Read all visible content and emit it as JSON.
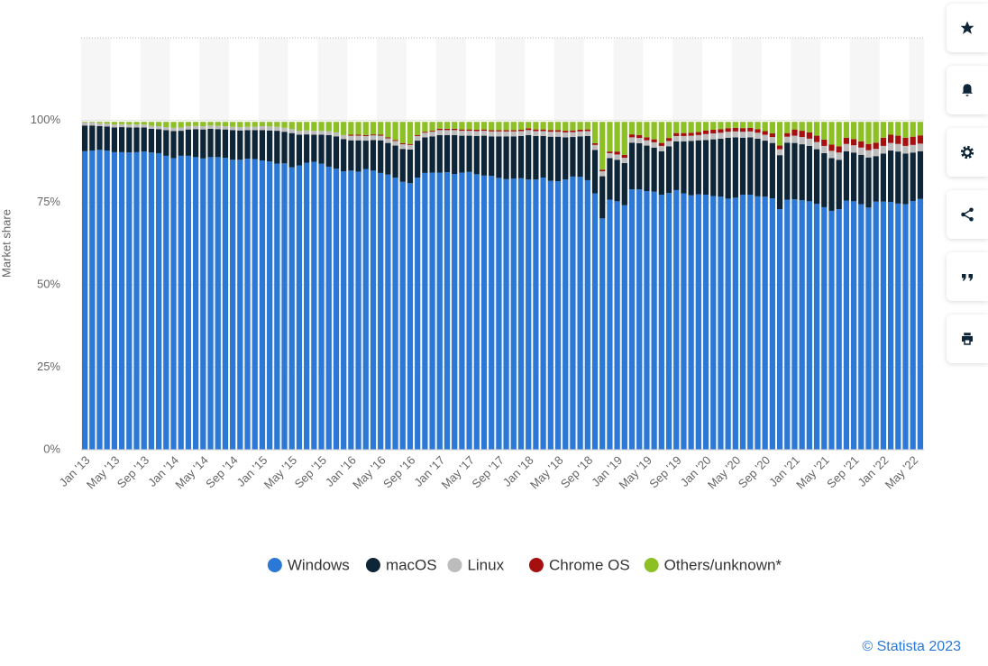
{
  "chart_data": {
    "type": "bar",
    "stacked": true,
    "y_label": "Market share",
    "credit": "© Statista 2023",
    "categories": [
      "Jan '13",
      null,
      null,
      null,
      "May '13",
      null,
      null,
      null,
      "Sep '13",
      null,
      null,
      null,
      "Jan '14",
      null,
      null,
      null,
      "May '14",
      null,
      null,
      null,
      "Sep '14",
      null,
      null,
      null,
      "Jan '15",
      null,
      null,
      null,
      "May '15",
      null,
      null,
      null,
      "Sep '15",
      null,
      null,
      null,
      "Jan '16",
      null,
      null,
      null,
      "May '16",
      null,
      null,
      null,
      "Sep '16",
      null,
      null,
      null,
      "Jan '17",
      null,
      null,
      null,
      "May '17",
      null,
      null,
      null,
      "Sep '17",
      null,
      null,
      null,
      "Jan '18",
      null,
      null,
      null,
      "May '18",
      null,
      null,
      null,
      "Sep '18",
      null,
      null,
      null,
      "Jan '19",
      null,
      null,
      null,
      "May '19",
      null,
      null,
      null,
      "Sep '19",
      null,
      null,
      null,
      "Jan '20",
      null,
      null,
      null,
      "May '20",
      null,
      null,
      null,
      "Sep '20",
      null,
      null,
      null,
      "Jan '21",
      null,
      null,
      null,
      "May '21",
      null,
      null,
      null,
      "Sep '21",
      null,
      null,
      null,
      "Jan '22",
      null,
      null,
      null,
      "May '22",
      null
    ],
    "series": [
      {
        "name": "Windows",
        "color": "#2b78d6",
        "values": [
          90.6,
          90.8,
          91,
          90.8,
          90.3,
          90.3,
          90.2,
          90.3,
          90.5,
          90.2,
          90,
          89.2,
          88.5,
          89.2,
          89.2,
          88.8,
          88.4,
          88.8,
          88.8,
          88.6,
          88,
          88,
          88.3,
          88.2,
          87.8,
          87.5,
          86.8,
          86.9,
          85.7,
          86.3,
          87.1,
          87.4,
          86.8,
          85.9,
          85.3,
          84.5,
          84.7,
          84.4,
          85.2,
          84.7,
          84,
          83.5,
          82.6,
          81.3,
          80.9,
          82.6,
          84,
          84.1,
          84.1,
          84.2,
          83.7,
          84.1,
          84.3,
          83.6,
          83.2,
          83.1,
          82.5,
          82.1,
          82.3,
          82.4,
          82,
          82,
          82.6,
          81.6,
          81.5,
          82,
          82.9,
          82.8,
          81.8,
          77.8,
          70.2,
          75.9,
          75.4,
          74.2,
          79,
          79,
          78.5,
          78.3,
          77.4,
          77.9,
          78.8,
          77.8,
          77.2,
          77.5,
          77.4,
          77,
          76.8,
          76.2,
          76.5,
          77.4,
          77.4,
          76.9,
          76.8,
          76.3,
          73,
          75.9,
          76,
          75.7,
          75.4,
          74.6,
          73.6,
          72.5,
          73,
          75.6,
          75.4,
          74.5,
          73.5,
          75.3,
          75.3,
          75.2,
          74.7,
          74.5,
          75.5,
          76.1
        ]
      },
      {
        "name": "macOS",
        "color": "#0e2538",
        "values": [
          7.8,
          7.6,
          7.2,
          7.3,
          7.5,
          7.6,
          7.6,
          7.5,
          7.3,
          7.2,
          7.3,
          7.8,
          8.2,
          7.6,
          8.0,
          8.5,
          8.8,
          8.6,
          8.5,
          8.6,
          9.0,
          8.9,
          8.7,
          8.8,
          9.2,
          9.4,
          10.0,
          9.6,
          10.4,
          9.3,
          8.6,
          8.2,
          8.8,
          9.6,
          9.8,
          9.8,
          9.2,
          9.5,
          8.6,
          9.3,
          9.9,
          9.6,
          9.7,
          10.0,
          10.2,
          11.2,
          10.8,
          11.0,
          11.4,
          11.3,
          11.8,
          11.2,
          11.0,
          11.6,
          12.1,
          12.0,
          12.6,
          13.0,
          12.8,
          12.8,
          13.5,
          13.2,
          12.6,
          13.4,
          13.5,
          12.8,
          12.0,
          12.3,
          13.4,
          13.2,
          12.8,
          12.6,
          12.6,
          12.8,
          14.2,
          14.0,
          13.8,
          13.4,
          13.2,
          14.2,
          14.8,
          15.8,
          16.5,
          16.4,
          16.6,
          17.2,
          17.6,
          18.5,
          18.3,
          17.3,
          17.4,
          17.5,
          17.0,
          16.8,
          16.4,
          17.3,
          17.1,
          17.0,
          16.8,
          16.6,
          16.4,
          16.0,
          15.0,
          15.0,
          14.8,
          15.0,
          15.2,
          13.8,
          14.6,
          15.6,
          15.8,
          15.4,
          14.7,
          14.5
        ]
      },
      {
        "name": "Linux",
        "color": "#bcbcbc",
        "values": [
          0.9,
          0.9,
          0.9,
          0.9,
          0.9,
          0.9,
          0.9,
          0.9,
          0.9,
          0.9,
          0.9,
          0.9,
          1.0,
          1.0,
          1.0,
          1.0,
          1.0,
          1.0,
          1.0,
          1.0,
          1.0,
          1.0,
          1.0,
          1.0,
          1.2,
          1.2,
          1.2,
          1.2,
          1.2,
          1.2,
          1.2,
          1.2,
          1.2,
          1.2,
          1.2,
          1.2,
          1.4,
          1.4,
          1.4,
          1.4,
          1.4,
          1.4,
          1.4,
          1.4,
          1.4,
          1.4,
          1.4,
          1.4,
          1.5,
          1.5,
          1.5,
          1.5,
          1.5,
          1.5,
          1.5,
          1.5,
          1.5,
          1.5,
          1.5,
          1.5,
          1.5,
          1.5,
          1.5,
          1.5,
          1.5,
          1.5,
          1.5,
          1.5,
          1.5,
          1.5,
          1.5,
          1.5,
          1.6,
          1.6,
          1.6,
          1.6,
          1.6,
          1.6,
          1.6,
          1.6,
          1.6,
          1.6,
          1.6,
          1.6,
          1.8,
          1.8,
          1.8,
          1.8,
          1.8,
          1.8,
          1.8,
          1.8,
          1.8,
          1.8,
          1.8,
          1.8,
          2.2,
          2.2,
          2.2,
          2.2,
          2.2,
          2.2,
          2.2,
          2.2,
          2.2,
          2.2,
          2.2,
          2.2,
          2.3,
          2.3,
          2.3,
          2.3,
          2.3,
          2.3
        ]
      },
      {
        "name": "Chrome OS",
        "color": "#a60f0f",
        "values": [
          0,
          0,
          0,
          0,
          0,
          0,
          0,
          0,
          0,
          0,
          0,
          0,
          0,
          0,
          0,
          0,
          0,
          0,
          0,
          0,
          0,
          0,
          0,
          0,
          0,
          0,
          0,
          0,
          0,
          0,
          0,
          0,
          0,
          0,
          0,
          0,
          0.3,
          0.3,
          0.3,
          0.3,
          0.3,
          0.3,
          0.3,
          0.3,
          0.3,
          0.3,
          0.3,
          0.3,
          0.4,
          0.4,
          0.4,
          0.4,
          0.4,
          0.4,
          0.4,
          0.4,
          0.4,
          0.4,
          0.4,
          0.4,
          0.5,
          0.5,
          0.5,
          0.5,
          0.5,
          0.5,
          0.5,
          0.5,
          0.5,
          0.5,
          0.5,
          0.5,
          0.9,
          0.9,
          0.9,
          0.9,
          0.9,
          0.9,
          0.9,
          0.9,
          0.9,
          0.9,
          0.9,
          0.9,
          1.1,
          1.1,
          1.1,
          1.1,
          1.1,
          1.1,
          1.1,
          1.1,
          1.1,
          1.1,
          1.1,
          1.1,
          1.9,
          1.9,
          1.9,
          1.9,
          1.9,
          1.9,
          1.9,
          1.9,
          1.9,
          1.9,
          1.9,
          1.9,
          2.5,
          2.5,
          2.5,
          2.5,
          2.5,
          2.5
        ]
      },
      {
        "name": "Others/unknown*",
        "color": "#8cc024",
        "values": [
          0.2,
          0.2,
          0.4,
          0.5,
          0.8,
          0.7,
          0.8,
          0.8,
          0.8,
          1.2,
          1.3,
          1.6,
          1.8,
          1.7,
          1.3,
          1.2,
          1.3,
          1.1,
          1.2,
          1.3,
          1.5,
          1.6,
          1.5,
          1.5,
          1.3,
          1.4,
          1.5,
          1.8,
          2.2,
          2.7,
          2.6,
          2.7,
          2.7,
          2.8,
          3.2,
          4.0,
          3.9,
          3.9,
          4.0,
          3.8,
          3.9,
          4.7,
          5.5,
          6.5,
          6.7,
          4.0,
          3.0,
          2.7,
          2.1,
          2.1,
          2.1,
          2.3,
          2.3,
          2.4,
          2.3,
          2.5,
          2.5,
          2.5,
          2.5,
          2.4,
          2.0,
          2.3,
          2.3,
          2.5,
          2.5,
          2.7,
          2.6,
          2.4,
          2.3,
          6.5,
          14.5,
          9.0,
          9.0,
          10.0,
          3.8,
          4.0,
          4.7,
          5.3,
          6.4,
          4.9,
          3.4,
          3.4,
          3.3,
          3.1,
          2.6,
          2.4,
          2.2,
          1.9,
          1.8,
          1.9,
          1.8,
          2.2,
          2.8,
          3.5,
          7.2,
          3.4,
          2.3,
          2.7,
          3.2,
          4.2,
          5.4,
          6.9,
          7.4,
          4.8,
          5.2,
          5.9,
          6.7,
          6.3,
          4.8,
          3.9,
          4.2,
          4.8,
          4.5,
          4.1
        ]
      }
    ],
    "ylim": [
      0,
      125
    ],
    "yticks": [
      {
        "value": 0,
        "label": "0%"
      },
      {
        "value": 25,
        "label": "25%"
      },
      {
        "value": 50,
        "label": "50%"
      },
      {
        "value": 75,
        "label": "75%"
      },
      {
        "value": 100,
        "label": "100%"
      }
    ],
    "grid": true,
    "legend": "bottom"
  }
}
